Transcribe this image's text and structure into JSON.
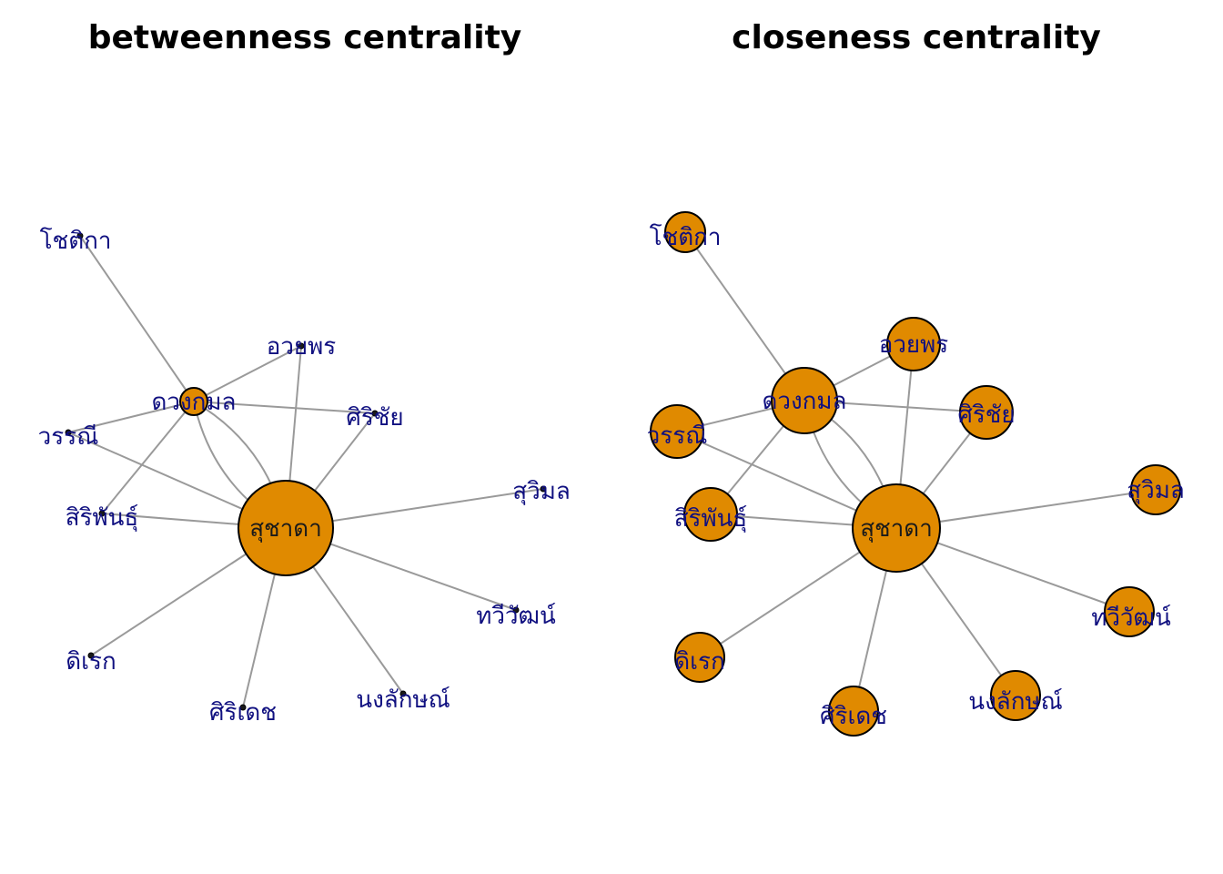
{
  "panels": [
    {
      "id": "betweenness",
      "title": "betweenness centrality",
      "node_style": "sized",
      "nodes": [
        {
          "id": "suchada",
          "label": "สุชาดา",
          "size": 52
        },
        {
          "id": "duangkamon",
          "label": "ดวงกมล",
          "size": 15
        },
        {
          "id": "chotika",
          "label": "โชติกา",
          "size": 0
        },
        {
          "id": "ouaiporn",
          "label": "อวยพร",
          "size": 0
        },
        {
          "id": "sirichai",
          "label": "ศิริชัย",
          "size": 0
        },
        {
          "id": "wannee",
          "label": "วรรณี",
          "size": 0
        },
        {
          "id": "siriphan",
          "label": "สิริพันธุ์",
          "size": 0
        },
        {
          "id": "suwimol",
          "label": "สุวิมล",
          "size": 0
        },
        {
          "id": "taweewat",
          "label": "ทวีวัฒน์",
          "size": 0
        },
        {
          "id": "direk",
          "label": "ดิเรก",
          "size": 0
        },
        {
          "id": "siridet",
          "label": "ศิริเดช",
          "size": 0
        },
        {
          "id": "nonglak",
          "label": "นงลักษณ์",
          "size": 0
        }
      ]
    },
    {
      "id": "closeness",
      "title": "closeness centrality",
      "node_style": "uniform",
      "nodes": [
        {
          "id": "suchada",
          "label": "สุชาดา",
          "size": 48
        },
        {
          "id": "duangkamon",
          "label": "ดวงกมล",
          "size": 36
        },
        {
          "id": "chotika",
          "label": "โชติกา",
          "size": 22
        },
        {
          "id": "ouaiporn",
          "label": "อวยพร",
          "size": 29
        },
        {
          "id": "sirichai",
          "label": "ศิริชัย",
          "size": 29
        },
        {
          "id": "wannee",
          "label": "วรรณี",
          "size": 29
        },
        {
          "id": "siriphan",
          "label": "สิริพันธุ์",
          "size": 29
        },
        {
          "id": "suwimol",
          "label": "สุวิมล",
          "size": 27
        },
        {
          "id": "taweewat",
          "label": "ทวีวัฒน์",
          "size": 27
        },
        {
          "id": "direk",
          "label": "ดิเรก",
          "size": 27
        },
        {
          "id": "siridet",
          "label": "ศิริเดช",
          "size": 27
        },
        {
          "id": "nonglak",
          "label": "นงลักษณ์",
          "size": 27
        }
      ]
    }
  ],
  "edges": [
    [
      "duangkamon",
      "chotika"
    ],
    [
      "duangkamon",
      "ouaiporn"
    ],
    [
      "duangkamon",
      "sirichai"
    ],
    [
      "duangkamon",
      "wannee"
    ],
    [
      "duangkamon",
      "siriphan"
    ],
    [
      "duangkamon",
      "suchada",
      "curve-a"
    ],
    [
      "duangkamon",
      "suchada",
      "curve-b"
    ],
    [
      "suchada",
      "ouaiporn"
    ],
    [
      "suchada",
      "sirichai"
    ],
    [
      "suchada",
      "wannee"
    ],
    [
      "suchada",
      "siriphan"
    ],
    [
      "suchada",
      "suwimol"
    ],
    [
      "suchada",
      "taweewat"
    ],
    [
      "suchada",
      "nonglak"
    ],
    [
      "suchada",
      "siridet"
    ],
    [
      "suchada",
      "direk"
    ]
  ],
  "colors": {
    "node_fill": "#e08a00",
    "edge": "#9a9a9a",
    "label": "#101080"
  }
}
